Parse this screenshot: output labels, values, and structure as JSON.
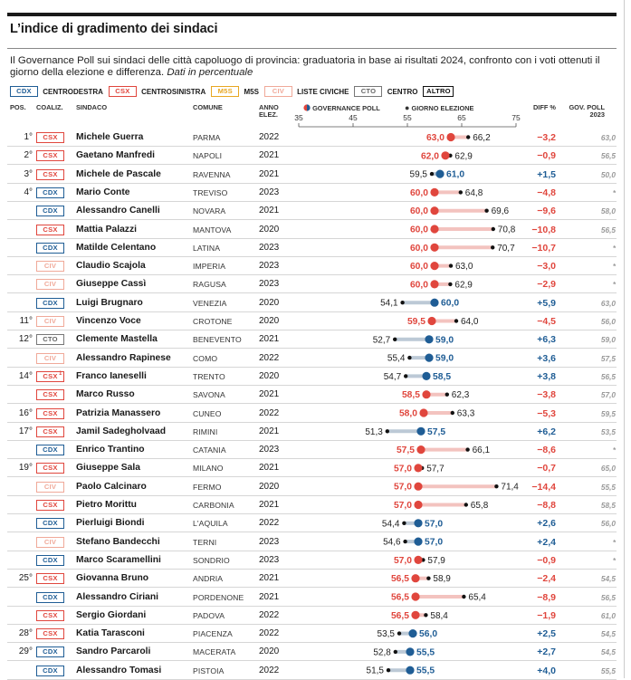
{
  "title": "L’indice di gradimento dei sindaci",
  "subtitle": "Il Governance Poll sui sindaci delle città capoluogo di provincia: graduatoria in base ai risultati 2024, confronto con i voti ottenuti il giorno della elezione e differenza.",
  "subtitle_note": "Dati in percentuale",
  "legend": [
    {
      "code": "CDX",
      "label": "CENTRODESTRA"
    },
    {
      "code": "CSX",
      "label": "CENTROSINISTRA"
    },
    {
      "code": "M5S",
      "label": "M5S"
    },
    {
      "code": "CIV",
      "label": "LISTE CIVICHE"
    },
    {
      "code": "CTO",
      "label": "CENTRO"
    },
    {
      "code": "ALTRO",
      "label": ""
    }
  ],
  "headers": {
    "pos": "POS.",
    "coal": "COALIZ.",
    "sindaco": "SINDACO",
    "comune": "COMUNE",
    "anno1": "ANNO",
    "anno2": "ELEZ.",
    "gov_poll": "GOVERNANCE POLL",
    "giorno": "GIORNO ELEZIONE",
    "diff": "DIFF %",
    "govpoll1": "GOV. POLL",
    "govpoll2": "2023"
  },
  "colors": {
    "CDX": "#1f5d95",
    "CSX": "#e0463d",
    "M5S": "#e8a722",
    "CIV": "#f0a999",
    "CTO": "#777777",
    "ALTRO": "#111111"
  },
  "chart_data": {
    "type": "dot-plot",
    "x_ticks": [
      "35",
      "45",
      "55",
      "65",
      "75"
    ],
    "xlim": [
      35,
      75
    ],
    "series": [
      {
        "name": "GOVERNANCE POLL"
      },
      {
        "name": "GIORNO ELEZIONE"
      }
    ],
    "rows": [
      {
        "pos": "1°",
        "coal": "CSX",
        "sup": "",
        "name": "Michele Guerra",
        "comune": "PARMA",
        "anno": "2022",
        "gov": "63,0",
        "elez": "66,2",
        "diff": "−3,2",
        "gp2023": "63,0",
        "g": 63.0,
        "e": 66.2
      },
      {
        "pos": "2°",
        "coal": "CSX",
        "sup": "",
        "name": "Gaetano Manfredi",
        "comune": "NAPOLI",
        "anno": "2021",
        "gov": "62,0",
        "elez": "62,9",
        "diff": "−0,9",
        "gp2023": "56,5",
        "g": 62.0,
        "e": 62.9
      },
      {
        "pos": "3°",
        "coal": "CSX",
        "sup": "",
        "name": "Michele de Pascale",
        "comune": "RAVENNA",
        "anno": "2021",
        "gov": "61,0",
        "elez": "59,5",
        "diff": "+1,5",
        "gp2023": "50,0",
        "g": 61.0,
        "e": 59.5
      },
      {
        "pos": "4°",
        "coal": "CDX",
        "sup": "",
        "name": "Mario Conte",
        "comune": "TREVISO",
        "anno": "2023",
        "gov": "60,0",
        "elez": "64,8",
        "diff": "−4,8",
        "gp2023": "*",
        "g": 60.0,
        "e": 64.8
      },
      {
        "pos": "",
        "coal": "CDX",
        "sup": "",
        "name": "Alessandro Canelli",
        "comune": "NOVARA",
        "anno": "2021",
        "gov": "60,0",
        "elez": "69,6",
        "diff": "−9,6",
        "gp2023": "58,0",
        "g": 60.0,
        "e": 69.6
      },
      {
        "pos": "",
        "coal": "CSX",
        "sup": "",
        "name": "Mattia Palazzi",
        "comune": "MANTOVA",
        "anno": "2020",
        "gov": "60,0",
        "elez": "70,8",
        "diff": "−10,8",
        "gp2023": "56,5",
        "g": 60.0,
        "e": 70.8
      },
      {
        "pos": "",
        "coal": "CDX",
        "sup": "",
        "name": "Matilde Celentano",
        "comune": "LATINA",
        "anno": "2023",
        "gov": "60,0",
        "elez": "70,7",
        "diff": "−10,7",
        "gp2023": "*",
        "g": 60.0,
        "e": 70.7
      },
      {
        "pos": "",
        "coal": "CIV",
        "sup": "",
        "name": "Claudio Scajola",
        "comune": "IMPERIA",
        "anno": "2023",
        "gov": "60,0",
        "elez": "63,0",
        "diff": "−3,0",
        "gp2023": "*",
        "g": 60.0,
        "e": 63.0
      },
      {
        "pos": "",
        "coal": "CIV",
        "sup": "",
        "name": "Giuseppe Cassì",
        "comune": "RAGUSA",
        "anno": "2023",
        "gov": "60,0",
        "elez": "62,9",
        "diff": "−2,9",
        "gp2023": "*",
        "g": 60.0,
        "e": 62.9
      },
      {
        "pos": "",
        "coal": "CDX",
        "sup": "",
        "name": "Luigi Brugnaro",
        "comune": "VENEZIA",
        "anno": "2020",
        "gov": "60,0",
        "elez": "54,1",
        "diff": "+5,9",
        "gp2023": "63,0",
        "g": 60.0,
        "e": 54.1
      },
      {
        "pos": "11°",
        "coal": "CIV",
        "sup": "",
        "name": "Vincenzo Voce",
        "comune": "CROTONE",
        "anno": "2020",
        "gov": "59,5",
        "elez": "64,0",
        "diff": "−4,5",
        "gp2023": "56,0",
        "g": 59.5,
        "e": 64.0
      },
      {
        "pos": "12°",
        "coal": "CTO",
        "sup": "",
        "name": "Clemente Mastella",
        "comune": "BENEVENTO",
        "anno": "2021",
        "gov": "59,0",
        "elez": "52,7",
        "diff": "+6,3",
        "gp2023": "59,0",
        "g": 59.0,
        "e": 52.7
      },
      {
        "pos": "",
        "coal": "CIV",
        "sup": "",
        "name": "Alessandro Rapinese",
        "comune": "COMO",
        "anno": "2022",
        "gov": "59,0",
        "elez": "55,4",
        "diff": "+3,6",
        "gp2023": "57,5",
        "g": 59.0,
        "e": 55.4
      },
      {
        "pos": "14°",
        "coal": "CSX",
        "sup": "1",
        "name": "Franco Ianeselli",
        "comune": "TRENTO",
        "anno": "2020",
        "gov": "58,5",
        "elez": "54,7",
        "diff": "+3,8",
        "gp2023": "56,5",
        "g": 58.5,
        "e": 54.7
      },
      {
        "pos": "",
        "coal": "CSX",
        "sup": "",
        "name": "Marco Russo",
        "comune": "SAVONA",
        "anno": "2021",
        "gov": "58,5",
        "elez": "62,3",
        "diff": "−3,8",
        "gp2023": "57,0",
        "g": 58.5,
        "e": 62.3
      },
      {
        "pos": "16°",
        "coal": "CSX",
        "sup": "",
        "name": "Patrizia Manassero",
        "comune": "CUNEO",
        "anno": "2022",
        "gov": "58,0",
        "elez": "63,3",
        "diff": "−5,3",
        "gp2023": "59,5",
        "g": 58.0,
        "e": 63.3
      },
      {
        "pos": "17°",
        "coal": "CSX",
        "sup": "",
        "name": "Jamil Sadegholvaad",
        "comune": "RIMINI",
        "anno": "2021",
        "gov": "57,5",
        "elez": "51,3",
        "diff": "+6,2",
        "gp2023": "53,5",
        "g": 57.5,
        "e": 51.3
      },
      {
        "pos": "",
        "coal": "CDX",
        "sup": "",
        "name": "Enrico Trantino",
        "comune": "CATANIA",
        "anno": "2023",
        "gov": "57,5",
        "elez": "66,1",
        "diff": "−8,6",
        "gp2023": "*",
        "g": 57.5,
        "e": 66.1
      },
      {
        "pos": "19°",
        "coal": "CSX",
        "sup": "",
        "name": "Giuseppe Sala",
        "comune": "MILANO",
        "anno": "2021",
        "gov": "57,0",
        "elez": "57,7",
        "diff": "−0,7",
        "gp2023": "65,0",
        "g": 57.0,
        "e": 57.7
      },
      {
        "pos": "",
        "coal": "CIV",
        "sup": "",
        "name": "Paolo Calcinaro",
        "comune": "FERMO",
        "anno": "2020",
        "gov": "57,0",
        "elez": "71,4",
        "diff": "−14,4",
        "gp2023": "55,5",
        "g": 57.0,
        "e": 71.4
      },
      {
        "pos": "",
        "coal": "CSX",
        "sup": "",
        "name": "Pietro Morittu",
        "comune": "CARBONIA",
        "anno": "2021",
        "gov": "57,0",
        "elez": "65,8",
        "diff": "−8,8",
        "gp2023": "58,5",
        "g": 57.0,
        "e": 65.8
      },
      {
        "pos": "",
        "coal": "CDX",
        "sup": "",
        "name": "Pierluigi Biondi",
        "comune": "L'AQUILA",
        "anno": "2022",
        "gov": "57,0",
        "elez": "54,4",
        "diff": "+2,6",
        "gp2023": "56,0",
        "g": 57.0,
        "e": 54.4
      },
      {
        "pos": "",
        "coal": "CIV",
        "sup": "",
        "name": "Stefano Bandecchi",
        "comune": "TERNI",
        "anno": "2023",
        "gov": "57,0",
        "elez": "54,6",
        "diff": "+2,4",
        "gp2023": "*",
        "g": 57.0,
        "e": 54.6
      },
      {
        "pos": "",
        "coal": "CDX",
        "sup": "",
        "name": "Marco Scaramellini",
        "comune": "SONDRIO",
        "anno": "2023",
        "gov": "57,0",
        "elez": "57,9",
        "diff": "−0,9",
        "gp2023": "*",
        "g": 57.0,
        "e": 57.9
      },
      {
        "pos": "25°",
        "coal": "CSX",
        "sup": "",
        "name": "Giovanna Bruno",
        "comune": "ANDRIA",
        "anno": "2021",
        "gov": "56,5",
        "elez": "58,9",
        "diff": "−2,4",
        "gp2023": "54,5",
        "g": 56.5,
        "e": 58.9
      },
      {
        "pos": "",
        "coal": "CDX",
        "sup": "",
        "name": "Alessandro Ciriani",
        "comune": "PORDENONE",
        "anno": "2021",
        "gov": "56,5",
        "elez": "65,4",
        "diff": "−8,9",
        "gp2023": "56,5",
        "g": 56.5,
        "e": 65.4
      },
      {
        "pos": "",
        "coal": "CSX",
        "sup": "",
        "name": "Sergio Giordani",
        "comune": "PADOVA",
        "anno": "2022",
        "gov": "56,5",
        "elez": "58,4",
        "diff": "−1,9",
        "gp2023": "61,0",
        "g": 56.5,
        "e": 58.4
      },
      {
        "pos": "28°",
        "coal": "CSX",
        "sup": "",
        "name": "Katia Tarasconi",
        "comune": "PIACENZA",
        "anno": "2022",
        "gov": "56,0",
        "elez": "53,5",
        "diff": "+2,5",
        "gp2023": "54,5",
        "g": 56.0,
        "e": 53.5
      },
      {
        "pos": "29°",
        "coal": "CDX",
        "sup": "",
        "name": "Sandro Parcaroli",
        "comune": "MACERATA",
        "anno": "2020",
        "gov": "55,5",
        "elez": "52,8",
        "diff": "+2,7",
        "gp2023": "54,5",
        "g": 55.5,
        "e": 52.8
      },
      {
        "pos": "",
        "coal": "CDX",
        "sup": "",
        "name": "Alessandro Tomasi",
        "comune": "PISTOIA",
        "anno": "2022",
        "gov": "55,5",
        "elez": "51,5",
        "diff": "+4,0",
        "gp2023": "55,5",
        "g": 55.5,
        "e": 51.5
      }
    ]
  }
}
